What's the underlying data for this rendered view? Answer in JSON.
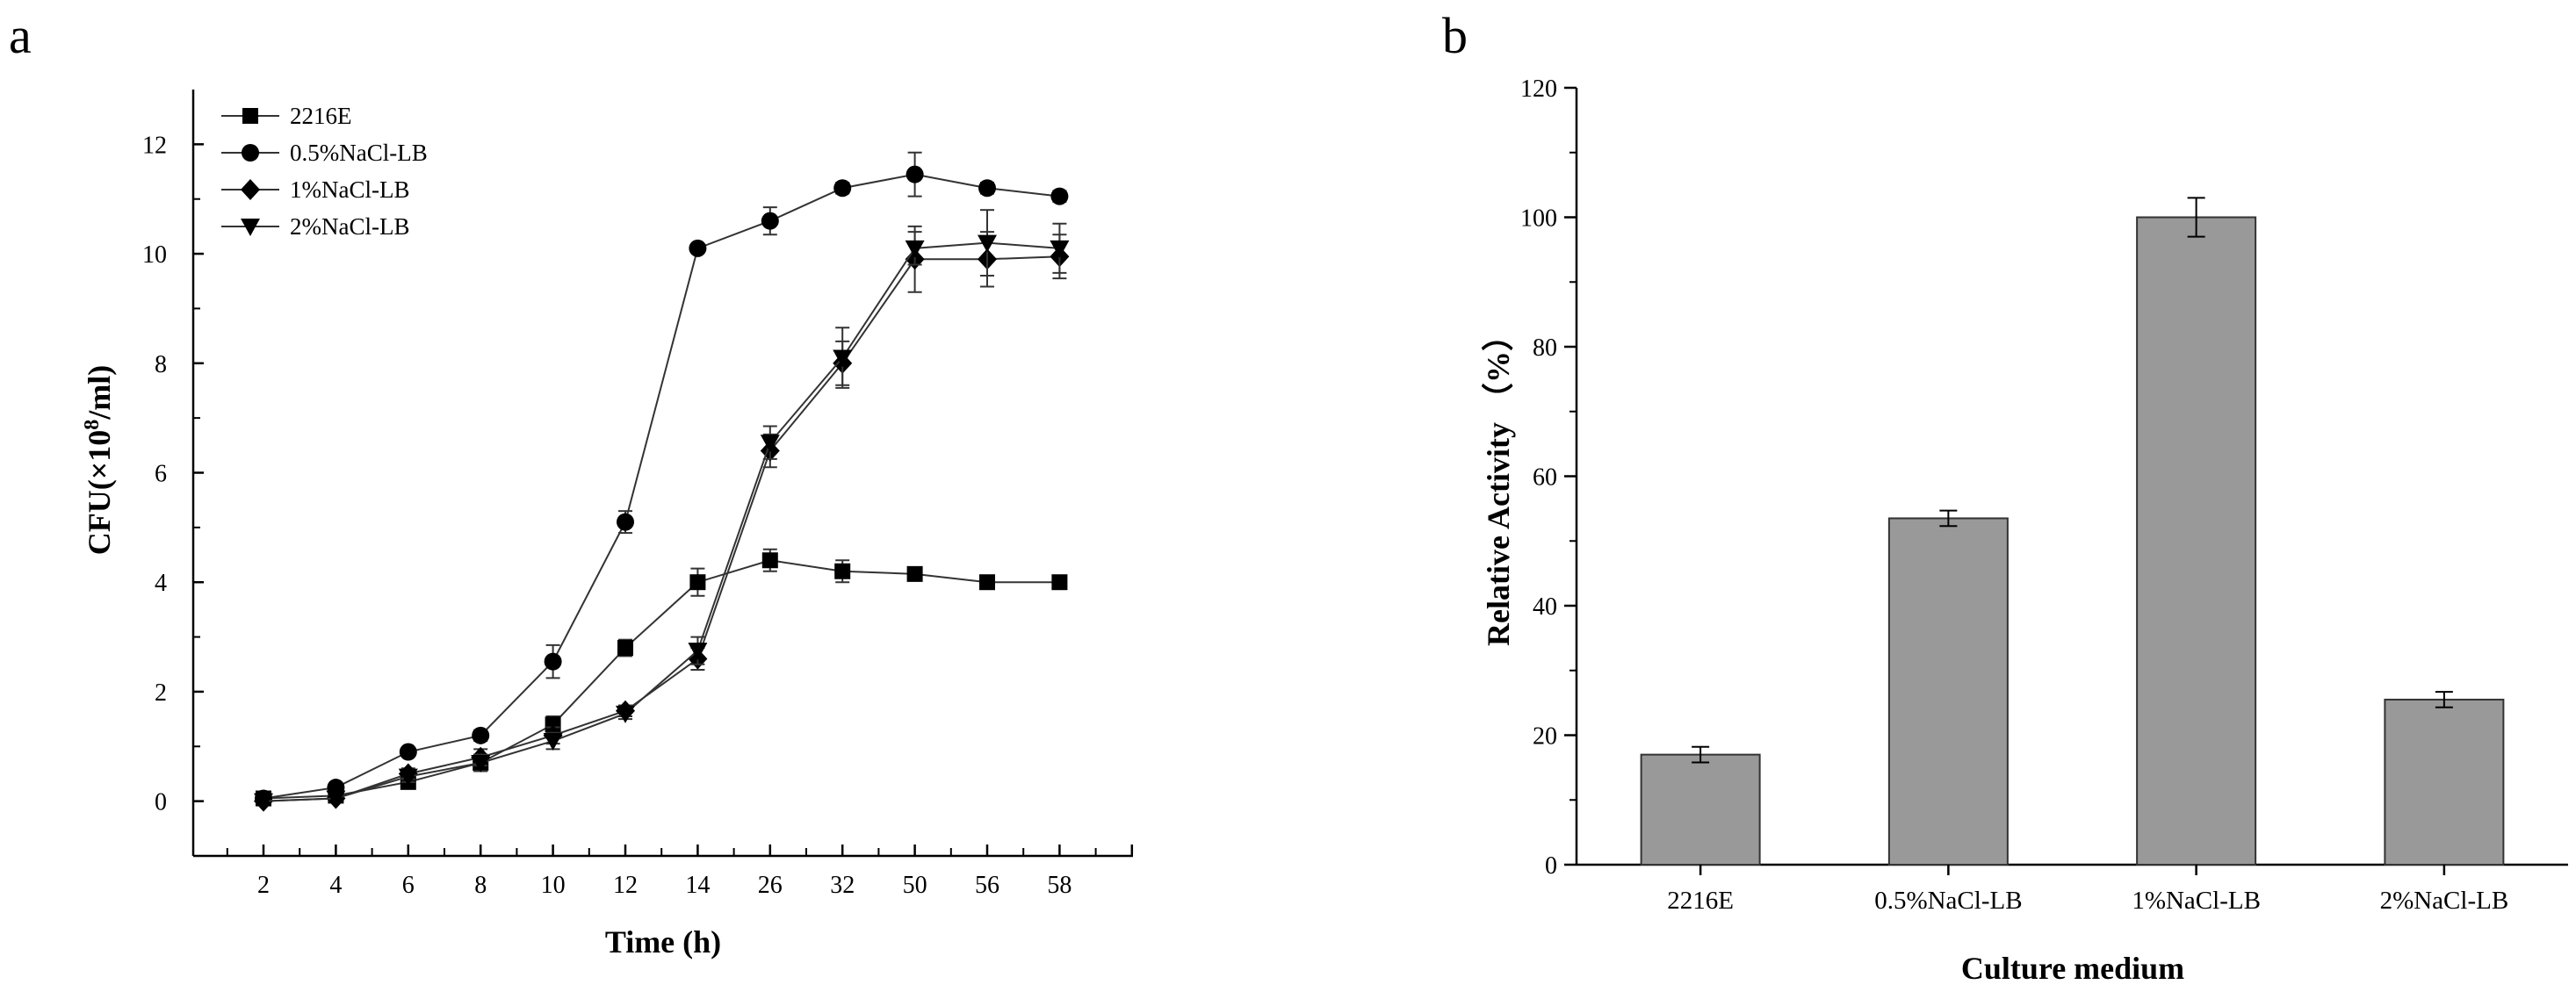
{
  "chart_data": [
    {
      "panel": "a",
      "type": "line",
      "xlabel": "Time (h)",
      "ylabel": "CFU(×10⁸/ml)",
      "x": [
        "2",
        "4",
        "6",
        "8",
        "10",
        "12",
        "14",
        "26",
        "32",
        "50",
        "56",
        "58"
      ],
      "ylim": [
        -1,
        13
      ],
      "yticks": [
        0,
        2,
        4,
        6,
        8,
        10,
        12
      ],
      "grid": false,
      "legend": "top-left",
      "series": [
        {
          "name": "2216E",
          "marker": "square",
          "values": [
            0.05,
            0.1,
            0.35,
            0.7,
            1.4,
            2.8,
            4.0,
            4.4,
            4.2,
            4.15,
            4.0,
            4.0
          ],
          "errors": [
            0.05,
            0.05,
            0.1,
            0.15,
            0.15,
            0.15,
            0.25,
            0.2,
            0.2,
            0.1,
            0.1,
            0.05
          ]
        },
        {
          "name": "0.5%NaCl-LB",
          "marker": "circle",
          "values": [
            0.05,
            0.25,
            0.9,
            1.2,
            2.55,
            5.1,
            10.1,
            10.6,
            11.2,
            11.45,
            11.2,
            11.05
          ],
          "errors": [
            0.05,
            0.05,
            0.05,
            0.1,
            0.3,
            0.2,
            0.05,
            0.25,
            0.1,
            0.4,
            0.1,
            0.1
          ]
        },
        {
          "name": "1%NaCl-LB",
          "marker": "diamond",
          "values": [
            0.0,
            0.05,
            0.5,
            0.8,
            1.2,
            1.65,
            2.6,
            6.4,
            8.0,
            9.9,
            9.9,
            9.95
          ],
          "errors": [
            0.05,
            0.05,
            0.1,
            0.15,
            0.15,
            0.1,
            0.2,
            0.3,
            0.4,
            0.6,
            0.5,
            0.4
          ]
        },
        {
          "name": "2%NaCl-LB",
          "marker": "triangle-down",
          "values": [
            0.0,
            0.05,
            0.45,
            0.7,
            1.1,
            1.6,
            2.75,
            6.55,
            8.1,
            10.1,
            10.2,
            10.1
          ],
          "errors": [
            0.05,
            0.05,
            0.1,
            0.15,
            0.15,
            0.1,
            0.25,
            0.3,
            0.55,
            0.3,
            0.6,
            0.45
          ]
        }
      ]
    },
    {
      "panel": "b",
      "type": "bar",
      "xlabel": "Culture medium",
      "ylabel": "Relative Activity （%）",
      "categories": [
        "2216E",
        "0.5%NaCl-LB",
        "1%NaCl-LB",
        "2%NaCl-LB"
      ],
      "values": [
        17,
        53.5,
        100,
        25.5
      ],
      "errors": [
        1.2,
        1.2,
        3,
        1.2
      ],
      "ylim": [
        0,
        120
      ],
      "yticks": [
        0,
        20,
        40,
        60,
        80,
        100,
        120
      ],
      "bar_color": "#999999",
      "grid": false
    }
  ]
}
